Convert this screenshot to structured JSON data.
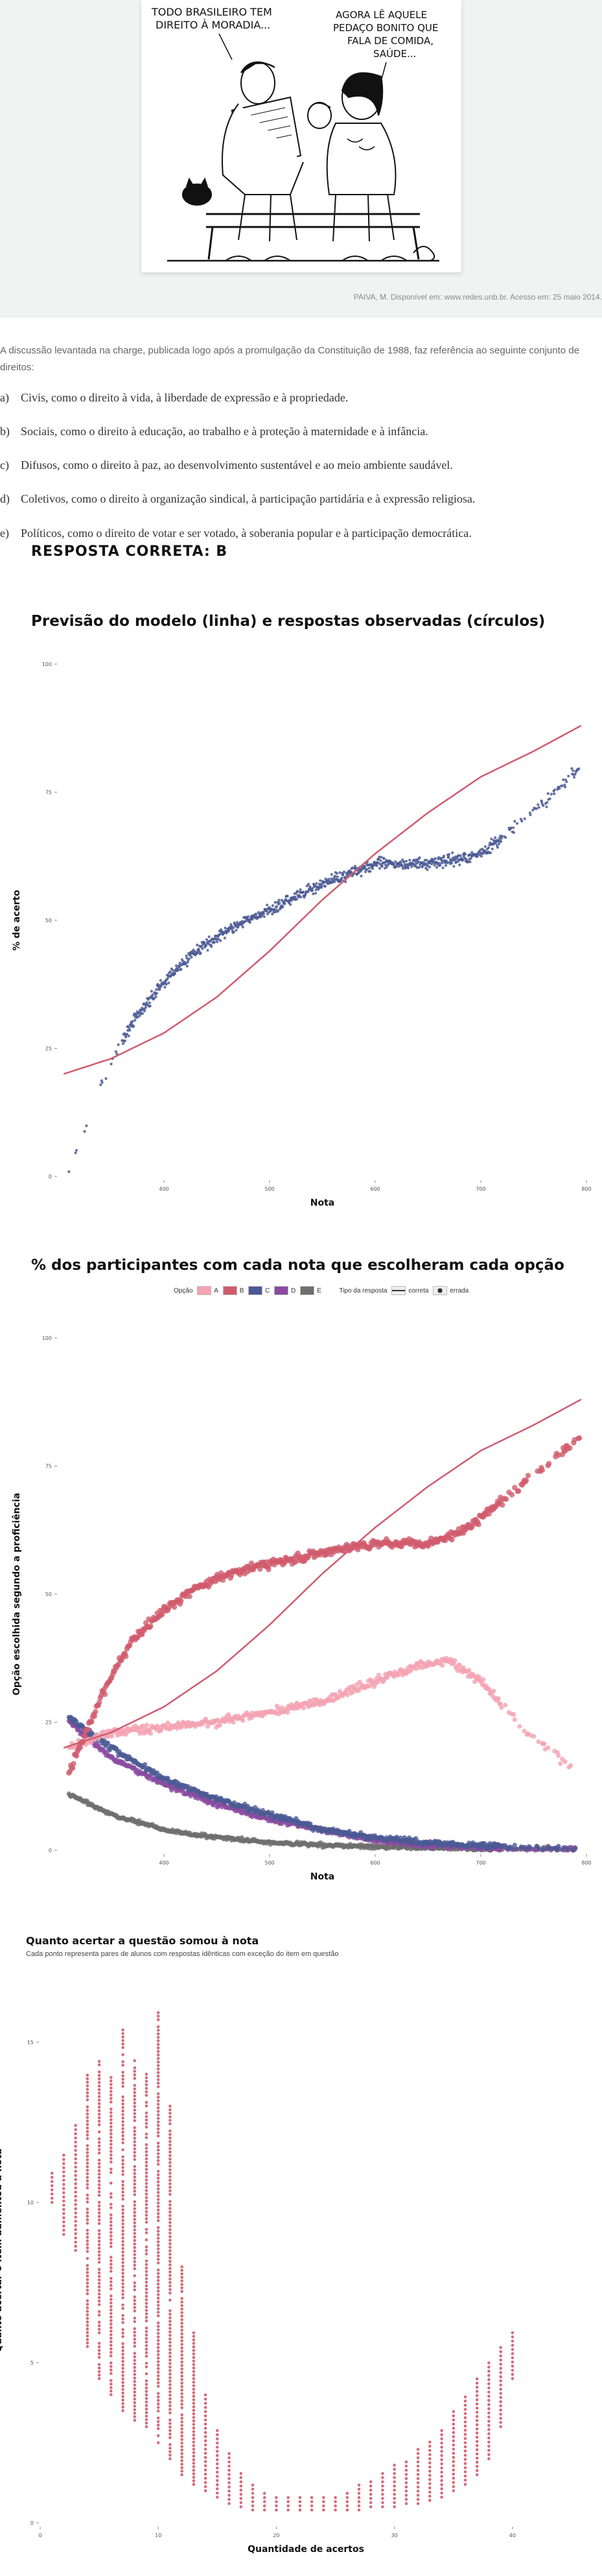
{
  "cartoon": {
    "bubble_left": "TODO BRASILEIRO TEM DIREITO À MORADIA...",
    "bubble_right": "AGORA LÊ AQUELE PEDAÇO BONITO QUE FALA DE COMIDA, SAÚDE..."
  },
  "caption": "PAIVA, M. Disponível em: www.redes.unb.br. Acesso em: 25 maio 2014.",
  "question": {
    "intro": "A discussão levantada na charge, publicada logo após a promulgação da Constituição de 1988, faz referência ao seguinte conjunto de direitos:",
    "options": [
      {
        "letter": "a)",
        "text": "Civis, como o direito à vida, à liberdade de expressão e à propriedade."
      },
      {
        "letter": "b)",
        "text": "Sociais, como o direito à educação, ao trabalho e à proteção à maternidade e à infância."
      },
      {
        "letter": "c)",
        "text": "Difusos, como o direito à paz, ao desenvolvimento sustentável e ao meio ambiente saudável."
      },
      {
        "letter": "d)",
        "text": "Coletivos, como o direito à organização sindical, à participação partidária e à expressão religiosa."
      },
      {
        "letter": "e)",
        "text": "Políticos, como o direito de votar e ser votado, à soberania popular e à participação democrática."
      }
    ],
    "answer": "RESPOSTA CORRETA: B"
  },
  "colors": {
    "A": "#f4a3b2",
    "B": "#d15b6d",
    "C": "#4b5a94",
    "D": "#8a4ba0",
    "E": "#6e6e6e",
    "model": "#d15b6d"
  },
  "chart_data": [
    {
      "type": "scatter",
      "title": "Previsão do modelo (linha) e respostas observadas (círculos)",
      "xlabel": "Nota",
      "ylabel": "% de acerto",
      "xlim": [
        300,
        800
      ],
      "ylim": [
        0,
        100
      ],
      "xticks": [
        400,
        500,
        600,
        700,
        800
      ],
      "yticks": [
        0,
        25,
        50,
        75,
        100
      ],
      "observed_profile": {
        "x": [
          310,
          320,
          330,
          340,
          350,
          370,
          400,
          430,
          460,
          500,
          530,
          560,
          600,
          640,
          680,
          700,
          720,
          740,
          760,
          780,
          795
        ],
        "y": [
          1,
          6,
          12,
          18,
          22,
          30,
          38,
          44,
          48,
          52,
          55,
          58,
          61,
          61,
          62,
          63,
          66,
          70,
          73,
          77,
          80
        ]
      },
      "model": {
        "x": [
          305,
          350,
          400,
          450,
          500,
          550,
          600,
          650,
          700,
          750,
          795
        ],
        "y": [
          20,
          23,
          28,
          35,
          44,
          54,
          63,
          71,
          78,
          83,
          88
        ]
      },
      "grid": false
    },
    {
      "type": "scatter",
      "title": "% dos participantes com cada nota que escolheram cada opção",
      "xlabel": "Nota",
      "ylabel": "Opção escolhida segundo a proficiência",
      "xlim": [
        300,
        800
      ],
      "ylim": [
        0,
        100
      ],
      "xticks": [
        400,
        500,
        600,
        700,
        800
      ],
      "yticks": [
        0,
        25,
        50,
        75,
        100
      ],
      "legend": {
        "placement": "top",
        "option_label": "Opção",
        "options": [
          "A",
          "B",
          "C",
          "D",
          "E"
        ],
        "type_label": "Tipo da resposta",
        "types": [
          "correta",
          "errada"
        ]
      },
      "series": [
        {
          "name": "A",
          "x": [
            310,
            350,
            400,
            450,
            500,
            550,
            600,
            640,
            670,
            700,
            730,
            760,
            790
          ],
          "y": [
            20,
            23,
            24,
            25,
            27,
            29,
            33,
            36,
            37,
            33,
            26,
            20,
            16
          ]
        },
        {
          "name": "B",
          "x": [
            310,
            330,
            350,
            370,
            400,
            430,
            460,
            500,
            550,
            600,
            650,
            680,
            700,
            730,
            760,
            795
          ],
          "y": [
            15,
            25,
            34,
            41,
            47,
            51,
            54,
            56,
            58,
            60,
            60,
            62,
            65,
            70,
            75,
            81
          ]
        },
        {
          "name": "C",
          "x": [
            310,
            350,
            400,
            450,
            500,
            550,
            600,
            650,
            700,
            750,
            790
          ],
          "y": [
            26,
            20,
            14,
            10,
            7,
            4,
            2.5,
            1.5,
            1,
            0.5,
            0.5
          ]
        },
        {
          "name": "D",
          "x": [
            310,
            350,
            400,
            450,
            500,
            550,
            600,
            650,
            700,
            750,
            790
          ],
          "y": [
            25,
            18,
            13,
            9,
            6,
            4,
            2,
            1,
            0.5,
            0.3,
            0.2
          ]
        },
        {
          "name": "E",
          "x": [
            310,
            350,
            400,
            450,
            500,
            550,
            600,
            650,
            700,
            750,
            790
          ],
          "y": [
            11,
            7,
            4,
            2.5,
            1.5,
            1,
            0.7,
            0.5,
            0.3,
            0.2,
            0.2
          ]
        }
      ],
      "model": {
        "x": [
          305,
          350,
          400,
          450,
          500,
          550,
          600,
          650,
          700,
          750,
          795
        ],
        "y": [
          20,
          23,
          28,
          35,
          44,
          54,
          63,
          71,
          78,
          83,
          88
        ]
      }
    },
    {
      "type": "scatter",
      "title": "Quanto acertar a questão somou à nota",
      "subtitle": "Cada ponto representa pares de alunos com respostas idênticas com exceção do item em questão",
      "xlabel": "Quantidade de acertos",
      "ylabel": "Quanto acertar o item aumentou a nota",
      "xlim": [
        0,
        45
      ],
      "ylim": [
        0,
        17
      ],
      "xticks": [
        0,
        10,
        20,
        30,
        40
      ],
      "yticks": [
        0,
        5,
        10,
        15
      ],
      "columns": [
        {
          "x": 1,
          "ymin": 10,
          "ymax": 11
        },
        {
          "x": 2,
          "ymin": 9,
          "ymax": 11.5
        },
        {
          "x": 3,
          "ymin": 8.5,
          "ymax": 12.5
        },
        {
          "x": 4,
          "ymin": 5.5,
          "ymax": 14
        },
        {
          "x": 5,
          "ymin": 4.5,
          "ymax": 14.5
        },
        {
          "x": 6,
          "ymin": 4,
          "ymax": 14
        },
        {
          "x": 7,
          "ymin": 3.5,
          "ymax": 15.5
        },
        {
          "x": 8,
          "ymin": 3.2,
          "ymax": 14.5
        },
        {
          "x": 9,
          "ymin": 3,
          "ymax": 14
        },
        {
          "x": 10,
          "ymin": 2.5,
          "ymax": 16
        },
        {
          "x": 11,
          "ymin": 2,
          "ymax": 13
        },
        {
          "x": 12,
          "ymin": 1.5,
          "ymax": 8
        },
        {
          "x": 13,
          "ymin": 1.2,
          "ymax": 6
        },
        {
          "x": 14,
          "ymin": 1,
          "ymax": 4
        },
        {
          "x": 15,
          "ymin": 0.8,
          "ymax": 3
        },
        {
          "x": 16,
          "ymin": 0.6,
          "ymax": 2.2
        },
        {
          "x": 17,
          "ymin": 0.5,
          "ymax": 1.6
        },
        {
          "x": 18,
          "ymin": 0.4,
          "ymax": 1.2
        },
        {
          "x": 19,
          "ymin": 0.4,
          "ymax": 1
        },
        {
          "x": 20,
          "ymin": 0.4,
          "ymax": 0.9
        },
        {
          "x": 21,
          "ymin": 0.4,
          "ymax": 0.8
        },
        {
          "x": 22,
          "ymin": 0.4,
          "ymax": 0.8
        },
        {
          "x": 23,
          "ymin": 0.4,
          "ymax": 0.8
        },
        {
          "x": 24,
          "ymin": 0.4,
          "ymax": 0.8
        },
        {
          "x": 25,
          "ymin": 0.4,
          "ymax": 0.9
        },
        {
          "x": 26,
          "ymin": 0.4,
          "ymax": 1
        },
        {
          "x": 27,
          "ymin": 0.4,
          "ymax": 1.2
        },
        {
          "x": 28,
          "ymin": 0.5,
          "ymax": 1.4
        },
        {
          "x": 29,
          "ymin": 0.5,
          "ymax": 1.6
        },
        {
          "x": 30,
          "ymin": 0.5,
          "ymax": 1.8
        },
        {
          "x": 31,
          "ymin": 0.6,
          "ymax": 2
        },
        {
          "x": 32,
          "ymin": 0.6,
          "ymax": 2.3
        },
        {
          "x": 33,
          "ymin": 0.7,
          "ymax": 2.6
        },
        {
          "x": 34,
          "ymin": 0.8,
          "ymax": 3
        },
        {
          "x": 35,
          "ymin": 1,
          "ymax": 3.5
        },
        {
          "x": 36,
          "ymin": 1.2,
          "ymax": 4
        },
        {
          "x": 37,
          "ymin": 1.5,
          "ymax": 4.5
        },
        {
          "x": 38,
          "ymin": 2,
          "ymax": 5
        },
        {
          "x": 39,
          "ymin": 3,
          "ymax": 5.5
        },
        {
          "x": 40,
          "ymin": 4.5,
          "ymax": 6
        }
      ]
    }
  ]
}
